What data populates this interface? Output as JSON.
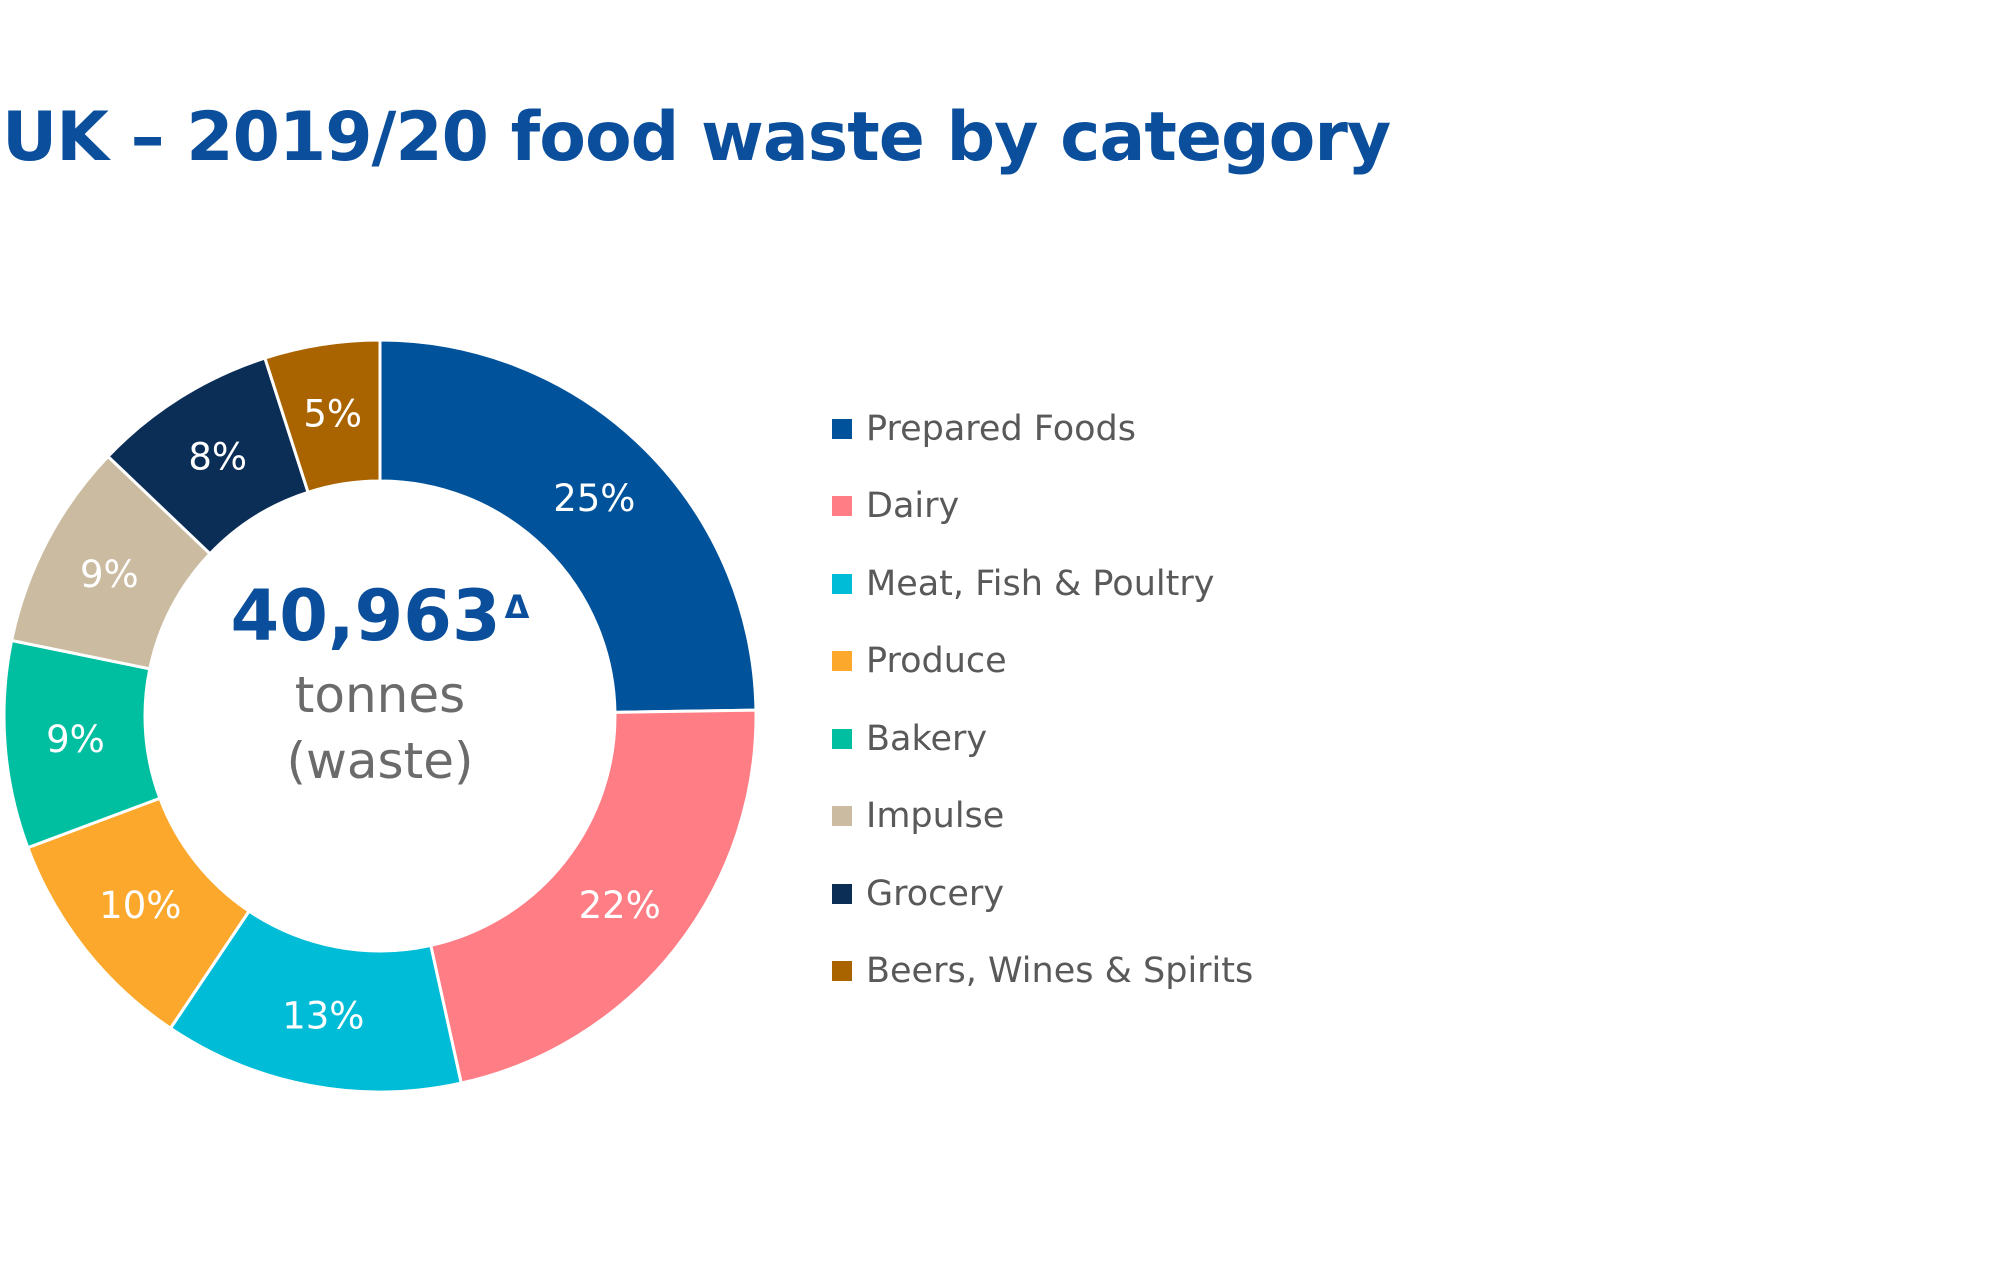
{
  "title": "UK – 2019/20 food waste by category",
  "center": {
    "total": "40,963",
    "marker": "Δ",
    "unit_line1": "tonnes",
    "unit_line2": "(waste)"
  },
  "chart_data": {
    "type": "pie",
    "title": "UK – 2019/20 food waste by category",
    "donut": true,
    "legend_position": "right",
    "unit": "%",
    "slices": [
      {
        "label": "Prepared Foods",
        "value": 25,
        "display": "25%",
        "color": "#00529b"
      },
      {
        "label": "Dairy",
        "value": 22,
        "display": "22%",
        "color": "#ff7d85"
      },
      {
        "label": "Meat, Fish & Poultry",
        "value": 13,
        "display": "13%",
        "color": "#00bcd6"
      },
      {
        "label": "Produce",
        "value": 10,
        "display": "10%",
        "color": "#fba82c"
      },
      {
        "label": "Bakery",
        "value": 9,
        "display": "9%",
        "color": "#00bfa0"
      },
      {
        "label": "Impulse",
        "value": 9,
        "display": "9%",
        "color": "#cbbba0"
      },
      {
        "label": "Grocery",
        "value": 8,
        "display": "8%",
        "color": "#0b2e57"
      },
      {
        "label": "Beers, Wines & Spirits",
        "value": 5,
        "display": "5%",
        "color": "#a96400"
      }
    ]
  }
}
